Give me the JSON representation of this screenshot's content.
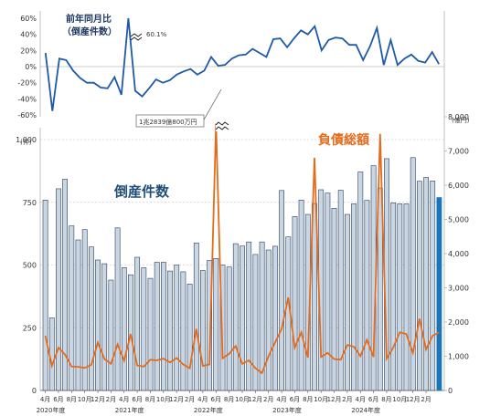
{
  "chart_data": [
    {
      "type": "line",
      "title": "前年同月比",
      "subtitle": "（倒産件数）",
      "annotation": "60.1%",
      "y_ticks": [
        "60%",
        "40%",
        "20%",
        "0%",
        "-20%",
        "-40%",
        "-60%"
      ],
      "ylim": [
        -60,
        60
      ],
      "series": [
        {
          "values": [
            17,
            -55,
            10,
            8,
            -5,
            -14,
            -20,
            -20,
            -26,
            -27,
            -13,
            -35,
            60.1,
            -30,
            -37,
            -27,
            -16,
            -20,
            -17,
            -10,
            -6,
            -3,
            -10,
            -5,
            12,
            1,
            2,
            10,
            14,
            15,
            22,
            17,
            12,
            34,
            35,
            24,
            35,
            45,
            40,
            50,
            20,
            33,
            36,
            35,
            27,
            27,
            8,
            25,
            48,
            2,
            33,
            2,
            10,
            15,
            7,
            5,
            18,
            3
          ]
        }
      ],
      "colors": {
        "line": "#1f5aa6"
      }
    },
    {
      "type": "bar",
      "title": "倒産件数",
      "y_left_ticks": [
        "0",
        "250",
        "500",
        "750",
        "1,000"
      ],
      "y_left_unit": "(件)",
      "y_right_ticks": [
        "0",
        "1,000",
        "2,000",
        "3,000",
        "4,000",
        "5,000",
        "6,000",
        "7,000",
        "8,000"
      ],
      "y_right_unit": "(億円)",
      "x_tick_labels": [
        "4月",
        "6月",
        "8月",
        "10月",
        "12月",
        "2月",
        "4月",
        "6月",
        "8月",
        "10月",
        "12月",
        "2月",
        "4月",
        "6月",
        "8月",
        "10月",
        "12月",
        "2月",
        "4月",
        "6月",
        "8月",
        "10月",
        "12月",
        "2月",
        "4月",
        "6月",
        "8月",
        "10月",
        "12月",
        "2月"
      ],
      "year_labels": [
        "2020年度",
        "2021年度",
        "2022年度",
        "2023年度",
        "2024年度"
      ],
      "series": [
        {
          "name": "倒産件数",
          "type": "bar",
          "axis": "left",
          "values": [
            759,
            289,
            804,
            842,
            656,
            600,
            641,
            572,
            520,
            505,
            440,
            648,
            490,
            461,
            531,
            489,
            447,
            511,
            511,
            476,
            500,
            473,
            424,
            588,
            478,
            518,
            526,
            500,
            492,
            585,
            576,
            592,
            542,
            592,
            560,
            575,
            797,
            612,
            693,
            759,
            702,
            745,
            800,
            787,
            726,
            798,
            702,
            744,
            871,
            758,
            896,
            807,
            924,
            748,
            744,
            744,
            928,
            834,
            849,
            835,
            769
          ]
        },
        {
          "name": "負債総額",
          "type": "line",
          "axis": "right",
          "values": [
            1600,
            720,
            1250,
            1050,
            700,
            690,
            660,
            750,
            1400,
            920,
            780,
            1350,
            870,
            1650,
            730,
            700,
            900,
            880,
            930,
            820,
            950,
            760,
            650,
            1800,
            720,
            760,
            7800,
            940,
            1070,
            1300,
            780,
            880,
            650,
            510,
            1000,
            1400,
            1800,
            2720,
            1250,
            1700,
            960,
            6800,
            980,
            1100,
            920,
            900,
            1330,
            1280,
            1000,
            1480,
            980,
            7500,
            930,
            1250,
            1700,
            1650,
            1100,
            2100,
            1200,
            1600,
            1700
          ]
        }
      ],
      "annotations": [
        "1兆2839億800万円"
      ],
      "colors": {
        "bar": "#c9d6e3",
        "bar_edge": "#2d3e5a",
        "bar_last": "#1b75bb",
        "line": "#e36c1c"
      }
    }
  ]
}
